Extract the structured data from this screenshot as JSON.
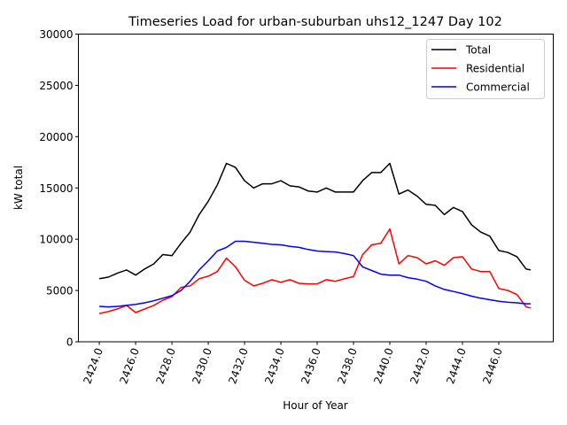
{
  "chart_data": {
    "type": "line",
    "title": "Timeseries Load for urban-suburban uhs12_1247  Day 102",
    "xlabel": "Hour of Year",
    "ylabel": "kW total",
    "xlim": [
      2422.85,
      2449.0
    ],
    "ylim": [
      0,
      30000
    ],
    "xticks": [
      2424,
      2426,
      2428,
      2430,
      2432,
      2434,
      2436,
      2438,
      2440,
      2442,
      2444,
      2446
    ],
    "xtick_labels": [
      "2424.0",
      "2426.0",
      "2428.0",
      "2430.0",
      "2432.0",
      "2434.0",
      "2436.0",
      "2438.0",
      "2440.0",
      "2442.0",
      "2444.0",
      "2446.0"
    ],
    "yticks": [
      0,
      5000,
      10000,
      15000,
      20000,
      25000,
      30000
    ],
    "ytick_labels": [
      "0",
      "5000",
      "10000",
      "15000",
      "20000",
      "25000",
      "30000"
    ],
    "grid": false,
    "legend_position": "top-right",
    "x": [
      2424,
      2424.5,
      2425,
      2425.5,
      2426,
      2426.5,
      2427,
      2427.5,
      2428,
      2428.5,
      2429,
      2429.5,
      2430,
      2430.5,
      2431,
      2431.5,
      2432,
      2432.5,
      2433,
      2433.5,
      2434,
      2434.5,
      2435,
      2435.5,
      2436,
      2436.5,
      2437,
      2437.5,
      2438,
      2438.5,
      2439,
      2439.5,
      2440,
      2440.5,
      2441,
      2441.5,
      2442,
      2442.5,
      2443,
      2443.5,
      2444,
      2444.5,
      2445,
      2445.5,
      2446,
      2446.5,
      2447,
      2447.5,
      2447.75
    ],
    "series": [
      {
        "name": "Total",
        "color": "#000000",
        "values": [
          6150,
          6300,
          6700,
          7000,
          6500,
          7100,
          7600,
          8500,
          8400,
          9600,
          10700,
          12400,
          13700,
          15300,
          17400,
          17000,
          15700,
          15000,
          15400,
          15400,
          15700,
          15200,
          15100,
          14700,
          14600,
          15000,
          14600,
          14600,
          14600,
          15700,
          16500,
          16500,
          17400,
          14400,
          14800,
          14200,
          13400,
          13300,
          12400,
          13100,
          12700,
          11400,
          10700,
          10300,
          8900,
          8700,
          8300,
          7100,
          7000
        ]
      },
      {
        "name": "Residential",
        "color": "#ff0000",
        "values": [
          2750,
          2950,
          3200,
          3550,
          2850,
          3200,
          3550,
          4050,
          4400,
          5300,
          5450,
          6150,
          6400,
          6850,
          8150,
          7300,
          6000,
          5450,
          5700,
          6050,
          5800,
          6050,
          5700,
          5650,
          5650,
          6050,
          5900,
          6150,
          6350,
          8500,
          9450,
          9600,
          11000,
          7600,
          8400,
          8200,
          7600,
          7900,
          7450,
          8200,
          8300,
          7100,
          6850,
          6850,
          5200,
          5000,
          4600,
          3400,
          3300
        ]
      },
      {
        "name": "Commercial",
        "color": "#0000ff",
        "values": [
          3450,
          3400,
          3450,
          3550,
          3650,
          3800,
          4000,
          4250,
          4500,
          5000,
          5900,
          7000,
          7900,
          8850,
          9200,
          9800,
          9800,
          9700,
          9600,
          9500,
          9450,
          9300,
          9200,
          9000,
          8850,
          8800,
          8750,
          8600,
          8400,
          7300,
          6950,
          6600,
          6500,
          6500,
          6250,
          6100,
          5900,
          5450,
          5100,
          4900,
          4700,
          4450,
          4250,
          4100,
          3950,
          3850,
          3800,
          3700,
          3700
        ]
      }
    ]
  }
}
